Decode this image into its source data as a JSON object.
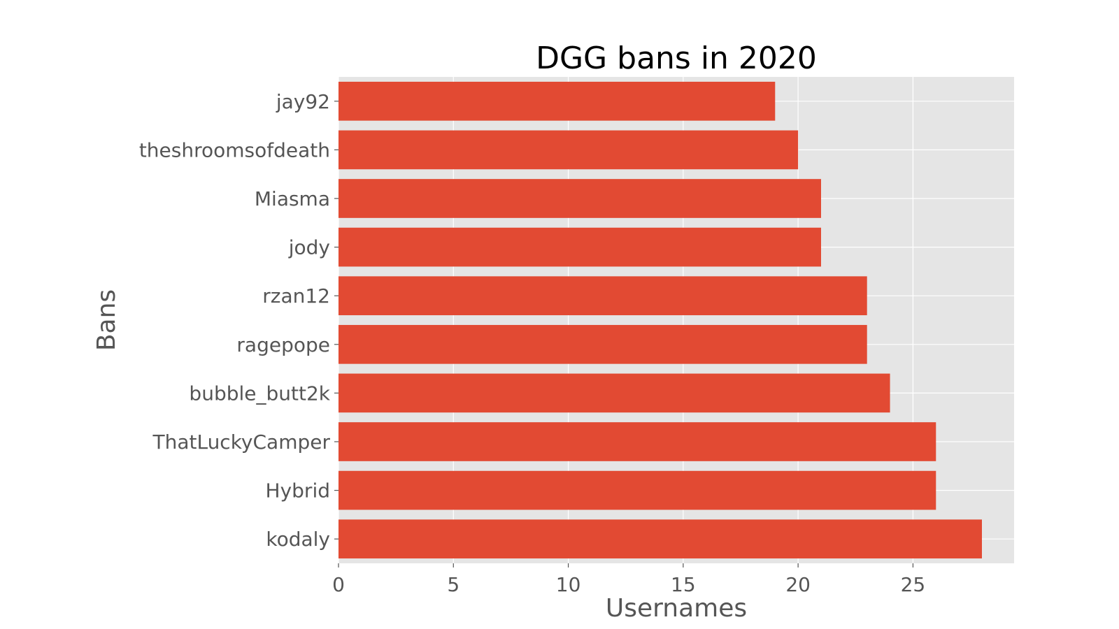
{
  "chart_data": {
    "type": "bar",
    "orientation": "horizontal",
    "title": "DGG bans in 2020",
    "xlabel": "Usernames",
    "ylabel": "Bans",
    "categories": [
      "kodaly",
      "Hybrid",
      "ThatLuckyCamper",
      "bubble_butt2k",
      "ragepope",
      "rzan12",
      "jody",
      "Miasma",
      "theshroomsofdeath",
      "jay92"
    ],
    "values": [
      28,
      26,
      26,
      24,
      23,
      23,
      21,
      21,
      20,
      19
    ],
    "xticks": [
      0,
      5,
      10,
      15,
      20,
      25
    ],
    "xlim": [
      0,
      29.4
    ],
    "grid": true,
    "colors": {
      "bar": "#E24A33",
      "plot_bg": "#E5E5E5",
      "grid": "#FFFFFF",
      "tick_text": "#555555",
      "title_text": "#000000"
    }
  }
}
